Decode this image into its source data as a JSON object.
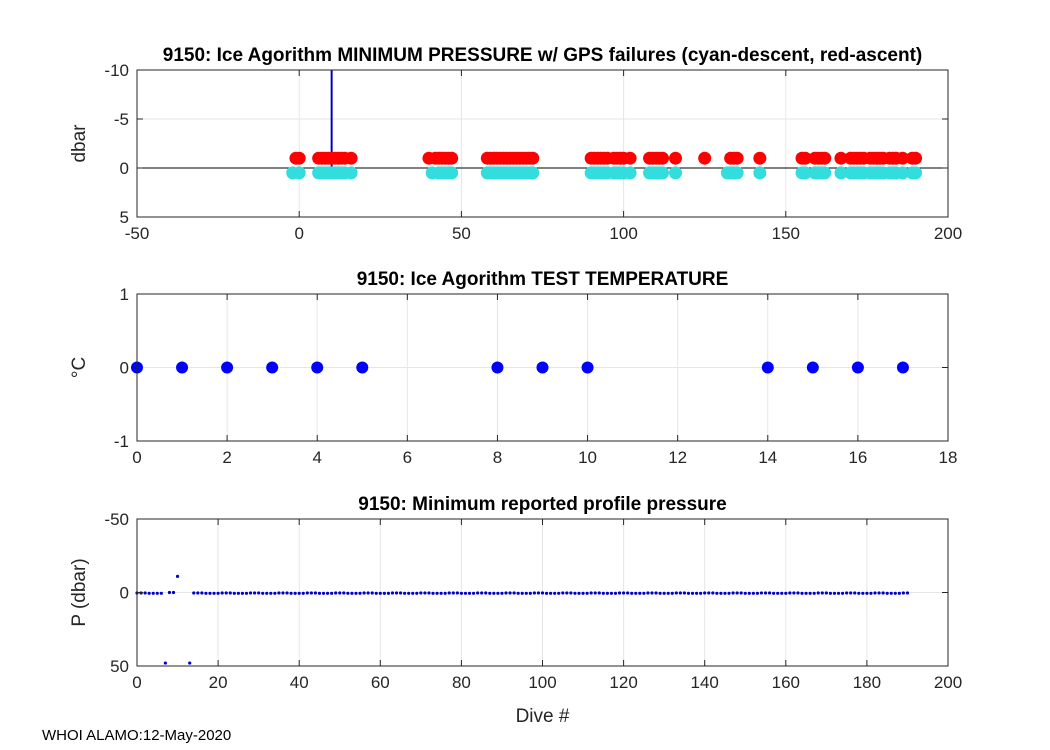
{
  "footer": "WHOI ALAMO:12-May-2020",
  "chart_data": [
    {
      "type": "scatter",
      "title": "9150: Ice Agorithm MINIMUM PRESSURE w/ GPS failures (cyan-descent, red-ascent)",
      "xlabel": "",
      "ylabel": "dbar",
      "xlim": [
        -50,
        200
      ],
      "ylim": [
        -10,
        5
      ],
      "y_reversed": true,
      "grid": true,
      "xticks": [
        -50,
        0,
        50,
        100,
        150,
        200
      ],
      "yticks": [
        -10,
        -5,
        0,
        5
      ],
      "zero_line": true,
      "vertical_line": {
        "x": 10,
        "y_from": 0,
        "y_to": -10,
        "color": "#0000cc"
      },
      "series": [
        {
          "color": "#33dddd",
          "y": 0.5,
          "x": [
            -2,
            0,
            6,
            7,
            8,
            9,
            10,
            11,
            12,
            13,
            14,
            16,
            41,
            43,
            44,
            45,
            46,
            47,
            58,
            59,
            60,
            61,
            62,
            63,
            64,
            65,
            66,
            67,
            68,
            69,
            70,
            71,
            72,
            90,
            91,
            92,
            93,
            94,
            95,
            97,
            98,
            99,
            100,
            102,
            108,
            109,
            110,
            111,
            112,
            116,
            132,
            133,
            134,
            135,
            142,
            155,
            156,
            159,
            160,
            161,
            162,
            167,
            170,
            171,
            172,
            173,
            174,
            176,
            177,
            178,
            179,
            180,
            182,
            183,
            184,
            186,
            189,
            190
          ]
        },
        {
          "color": "#ff0000",
          "y": -1,
          "x": [
            -1,
            0,
            6,
            7,
            8,
            9,
            10,
            11,
            12,
            13,
            14,
            16,
            40,
            42,
            43,
            44,
            45,
            46,
            47,
            58,
            59,
            60,
            61,
            62,
            63,
            64,
            65,
            66,
            67,
            68,
            69,
            70,
            71,
            72,
            90,
            91,
            92,
            93,
            94,
            95,
            97,
            98,
            99,
            100,
            102,
            108,
            109,
            110,
            111,
            112,
            116,
            125,
            133,
            134,
            135,
            142,
            155,
            156,
            159,
            160,
            161,
            162,
            167,
            170,
            171,
            172,
            173,
            174,
            176,
            177,
            178,
            179,
            180,
            182,
            183,
            184,
            186,
            189,
            190
          ]
        }
      ]
    },
    {
      "type": "scatter",
      "title": "9150: Ice Agorithm TEST TEMPERATURE",
      "xlabel": "",
      "ylabel": "°C",
      "xlim": [
        0,
        18
      ],
      "ylim": [
        -1,
        1
      ],
      "grid": true,
      "xticks": [
        0,
        2,
        4,
        6,
        8,
        10,
        12,
        14,
        16,
        18
      ],
      "yticks": [
        -1,
        0,
        1
      ],
      "series": [
        {
          "color": "#0000ff",
          "x": [
            0,
            1,
            2,
            3,
            4,
            5,
            8,
            9,
            10,
            14,
            15,
            16,
            17
          ],
          "y": [
            0,
            0,
            0,
            0,
            0,
            0,
            0,
            0,
            0,
            0,
            0,
            0,
            0
          ]
        }
      ]
    },
    {
      "type": "scatter",
      "title": "9150: Minimum reported profile pressure",
      "xlabel": "Dive #",
      "ylabel": "P (dbar)",
      "xlim": [
        0,
        200
      ],
      "ylim": [
        -50,
        50
      ],
      "y_reversed": true,
      "grid": true,
      "xticks": [
        0,
        20,
        40,
        60,
        80,
        100,
        120,
        140,
        160,
        180,
        200
      ],
      "yticks": [
        -50,
        0,
        50
      ],
      "series": [
        {
          "color": "#0000cc",
          "x_range": [
            0,
            190
          ],
          "exceptions": [
            {
              "x": 7,
              "y": 48
            },
            {
              "x": 8,
              "y": 0
            },
            {
              "x": 9,
              "y": 0
            },
            {
              "x": 10,
              "y": -11
            },
            {
              "x": 11,
              "y": null
            },
            {
              "x": 12,
              "y": null
            },
            {
              "x": 13,
              "y": 48
            }
          ],
          "base_y": 0.3
        }
      ]
    }
  ]
}
